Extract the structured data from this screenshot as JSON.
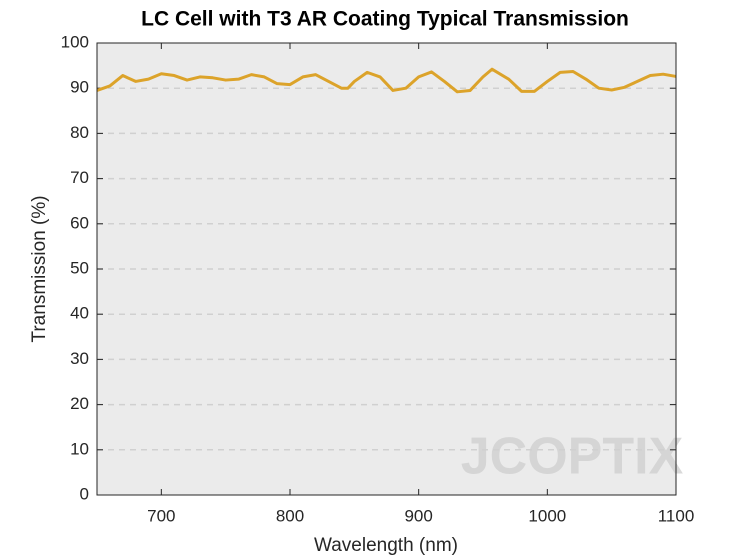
{
  "chart_data": {
    "type": "line",
    "title": "LC Cell with T3 AR Coating Typical Transmission",
    "x_label": "Wavelength (nm)",
    "y_label": "Transmission (%)",
    "watermark": "JCOPTIX",
    "x": [
      650,
      660,
      670,
      680,
      690,
      700,
      710,
      720,
      730,
      740,
      750,
      760,
      770,
      780,
      790,
      800,
      810,
      820,
      830,
      840,
      845,
      850,
      860,
      870,
      880,
      890,
      900,
      910,
      920,
      930,
      940,
      950,
      957,
      970,
      980,
      990,
      1000,
      1010,
      1020,
      1030,
      1040,
      1050,
      1060,
      1070,
      1080,
      1090,
      1100
    ],
    "series": [
      {
        "name": "Transmission",
        "color": "#dca32a",
        "values": [
          89.5,
          90.5,
          92.8,
          91.5,
          92.0,
          93.2,
          92.8,
          91.8,
          92.5,
          92.3,
          91.8,
          92.0,
          93.0,
          92.5,
          91.0,
          90.8,
          92.5,
          93.0,
          91.5,
          90.0,
          90.0,
          91.5,
          93.5,
          92.5,
          89.5,
          90.0,
          92.5,
          93.6,
          91.5,
          89.2,
          89.5,
          92.5,
          94.2,
          92.0,
          89.3,
          89.3,
          91.5,
          93.5,
          93.7,
          92.0,
          90.0,
          89.6,
          90.2,
          91.5,
          92.8,
          93.1,
          92.6
        ]
      }
    ],
    "xlim": [
      650,
      1100
    ],
    "xticks": [
      700,
      800,
      900,
      1000,
      1100
    ],
    "ylim": [
      0,
      100
    ],
    "yticks": [
      0,
      10,
      20,
      30,
      40,
      50,
      60,
      70,
      80,
      90,
      100
    ],
    "grid": true
  }
}
